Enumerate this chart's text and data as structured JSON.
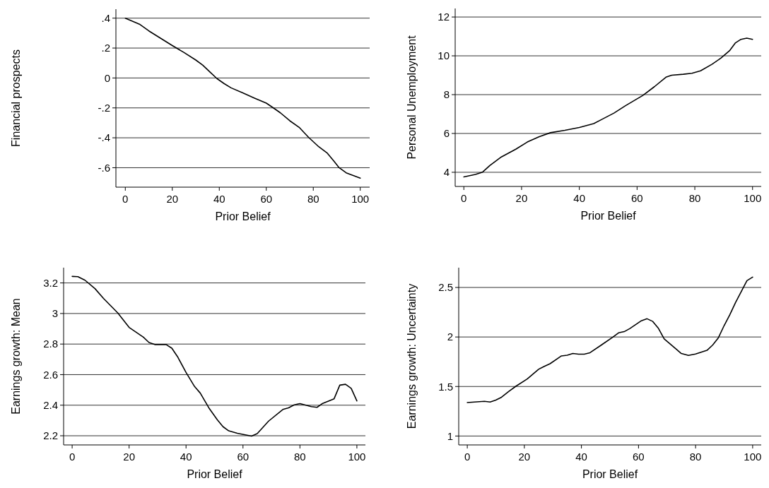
{
  "chart_data": [
    {
      "type": "line",
      "ylabel": "Financial prospects",
      "xlabel": "Prior Belief",
      "color": "#000000",
      "grid": "y",
      "line_style": "solid",
      "xlim": [
        -4,
        104
      ],
      "xticks": [
        0,
        20,
        40,
        60,
        80,
        100
      ],
      "ylim": [
        -0.73,
        0.46
      ],
      "yticks": [
        {
          "value": 0.4,
          "label": ".4"
        },
        {
          "value": 0.2,
          "label": ".2"
        },
        0,
        {
          "value": -0.2,
          "label": "-.2"
        },
        {
          "value": -0.4,
          "label": "-.4"
        },
        {
          "value": -0.6,
          "label": "-.6"
        }
      ],
      "x": [
        0,
        6,
        10,
        20,
        25,
        30,
        33,
        36,
        39,
        42,
        45,
        50,
        55,
        60,
        63,
        66,
        70,
        74,
        78,
        82,
        86,
        89,
        91,
        94,
        97,
        100
      ],
      "values": [
        0.4,
        0.36,
        0.315,
        0.217,
        0.17,
        0.12,
        0.085,
        0.04,
        -0.004,
        -0.037,
        -0.066,
        -0.1,
        -0.135,
        -0.168,
        -0.2,
        -0.233,
        -0.286,
        -0.33,
        -0.397,
        -0.455,
        -0.503,
        -0.56,
        -0.6,
        -0.634,
        -0.652,
        -0.67
      ]
    },
    {
      "type": "line",
      "ylabel": "Personal Unemployment",
      "xlabel": "Prior Belief",
      "color": "#000000",
      "grid": "y",
      "line_style": "solid",
      "xlim": [
        -3,
        103
      ],
      "xticks": [
        0,
        20,
        40,
        60,
        80,
        100
      ],
      "ylim": [
        3.27,
        12.44
      ],
      "yticks": [
        4,
        6,
        8,
        10,
        12
      ],
      "x": [
        0,
        4,
        6.5,
        9,
        13,
        18,
        22,
        26,
        30,
        35,
        40,
        45,
        48,
        52,
        56,
        62,
        66,
        70,
        72,
        76,
        79,
        82,
        86,
        89,
        92,
        94,
        96,
        98,
        100
      ],
      "values": [
        3.76,
        3.89,
        4.01,
        4.35,
        4.79,
        5.19,
        5.56,
        5.83,
        6.04,
        6.16,
        6.31,
        6.51,
        6.74,
        7.05,
        7.43,
        7.96,
        8.41,
        8.9,
        9.0,
        9.05,
        9.1,
        9.23,
        9.57,
        9.88,
        10.26,
        10.66,
        10.85,
        10.91,
        10.85
      ]
    },
    {
      "type": "line",
      "ylabel": "Earnings growth: Mean",
      "xlabel": "Prior Belief",
      "color": "#000000",
      "grid": "y",
      "line_style": "solid",
      "xlim": [
        -3,
        103
      ],
      "xticks": [
        0,
        20,
        40,
        60,
        80,
        100
      ],
      "ylim": [
        2.14,
        3.3
      ],
      "yticks": [
        2.2,
        2.4,
        2.6,
        2.8,
        3,
        3.2
      ],
      "x": [
        0,
        2,
        4.5,
        8,
        11,
        16,
        20,
        25,
        27,
        29,
        33,
        35,
        37,
        40,
        43,
        45,
        48,
        51,
        53,
        55,
        58,
        63,
        65,
        69,
        74,
        76,
        78,
        80,
        84,
        86,
        88,
        92,
        94,
        96,
        98,
        100
      ],
      "values": [
        3.243,
        3.241,
        3.218,
        3.163,
        3.099,
        3.004,
        2.909,
        2.845,
        2.81,
        2.797,
        2.797,
        2.773,
        2.718,
        2.614,
        2.522,
        2.479,
        2.383,
        2.304,
        2.259,
        2.232,
        2.216,
        2.198,
        2.214,
        2.296,
        2.372,
        2.383,
        2.402,
        2.41,
        2.391,
        2.386,
        2.412,
        2.442,
        2.531,
        2.537,
        2.51,
        2.428
      ]
    },
    {
      "type": "line",
      "ylabel": "Earnings growth: Uncertainty",
      "xlabel": "Prior Belief",
      "color": "#000000",
      "grid": "y",
      "line_style": "solid",
      "xlim": [
        -3,
        103
      ],
      "xticks": [
        0,
        20,
        40,
        60,
        80,
        100
      ],
      "ylim": [
        0.91,
        2.7
      ],
      "yticks": [
        1,
        1.5,
        2,
        2.5
      ],
      "x": [
        0,
        6,
        8,
        10,
        12,
        14.5,
        17,
        21,
        25,
        27,
        29,
        33,
        35,
        37,
        39,
        41,
        43,
        47,
        51,
        53,
        55,
        57,
        61,
        63,
        65,
        67,
        69,
        73,
        75,
        77.5,
        80,
        84,
        86,
        88,
        90,
        92,
        94,
        98,
        100
      ],
      "values": [
        1.338,
        1.35,
        1.343,
        1.363,
        1.392,
        1.449,
        1.502,
        1.576,
        1.674,
        1.703,
        1.73,
        1.809,
        1.816,
        1.833,
        1.826,
        1.826,
        1.841,
        1.919,
        1.998,
        2.042,
        2.054,
        2.086,
        2.164,
        2.184,
        2.157,
        2.086,
        1.98,
        1.882,
        1.833,
        1.814,
        1.828,
        1.865,
        1.919,
        1.993,
        2.115,
        2.225,
        2.348,
        2.569,
        2.605
      ]
    }
  ]
}
